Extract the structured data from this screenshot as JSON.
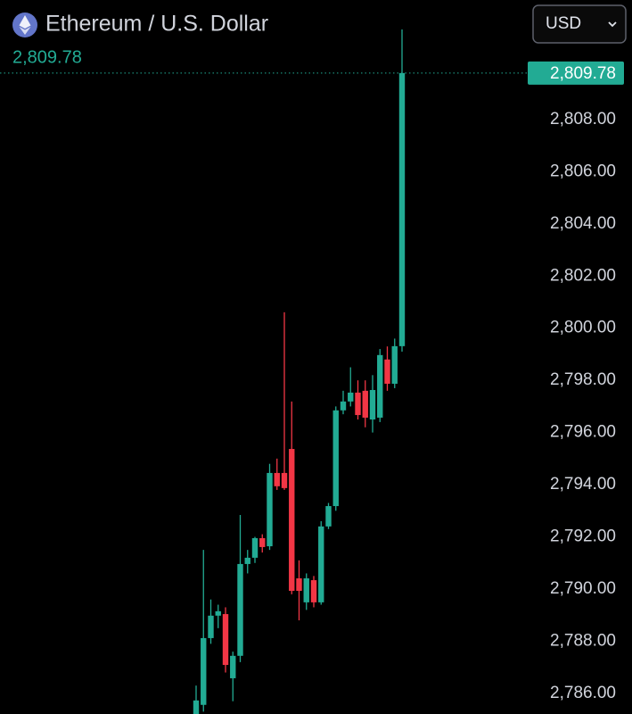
{
  "chart_data": {
    "type": "candlestick",
    "title": "Ethereum / U.S. Dollar",
    "currency": "USD",
    "price_label": {
      "value": 2809.78,
      "label": "2,809.78"
    },
    "up_color": "#22ab94",
    "down_color": "#f23645",
    "categories": [
      null,
      null,
      null,
      null,
      null,
      null,
      null,
      null,
      null,
      null,
      null,
      null,
      null,
      null,
      null,
      null,
      null,
      null,
      null,
      null,
      null,
      null,
      null,
      null,
      null,
      null,
      null,
      null,
      null
    ],
    "open": [
      2785.21,
      2785.56,
      2788.12,
      2788.98,
      2789.04,
      2786.58,
      2787.44,
      2790.96,
      2791.2,
      2791.95,
      2791.64,
      2794.45,
      2794.45,
      2795.37,
      2790.41,
      2789.49,
      2790.34,
      2789.49,
      2792.4,
      2793.18,
      2796.85,
      2797.19,
      2797.53,
      2797.6,
      2796.5,
      2796.57,
      2798.8,
      2797.87,
      2799.31
    ],
    "high": [
      2786.3,
      2791.5,
      2789.6,
      2789.4,
      2789.3,
      2787.6,
      2792.84,
      2791.5,
      2792.0,
      2792.1,
      2794.8,
      2795.0,
      2800.61,
      2797.19,
      2791.1,
      2790.6,
      2790.5,
      2792.6,
      2793.3,
      2797.0,
      2797.6,
      2798.5,
      2798.0,
      2798.0,
      2798.2,
      2799.2,
      2799.3,
      2799.6,
      2811.45
    ],
    "low": [
      2785.0,
      2785.3,
      2787.9,
      2788.5,
      2786.8,
      2785.7,
      2787.2,
      2790.6,
      2791.0,
      2791.4,
      2791.5,
      2793.8,
      2793.8,
      2789.8,
      2788.8,
      2789.2,
      2789.3,
      2789.4,
      2792.3,
      2793.0,
      2796.7,
      2797.0,
      2796.5,
      2796.2,
      2796.0,
      2796.4,
      2797.6,
      2797.7,
      2799.1
    ],
    "close": [
      2785.73,
      2788.12,
      2788.98,
      2789.15,
      2787.09,
      2787.44,
      2790.96,
      2791.2,
      2791.95,
      2791.61,
      2794.45,
      2793.94,
      2793.87,
      2789.93,
      2789.93,
      2790.41,
      2789.49,
      2792.4,
      2793.18,
      2796.85,
      2797.19,
      2797.53,
      2796.67,
      2796.57,
      2797.63,
      2798.97,
      2797.87,
      2799.31,
      2809.78
    ],
    "ylim": [
      2785.21,
      2812.58
    ],
    "yticks": [
      {
        "value": 2786,
        "label": "2,786.00"
      },
      {
        "value": 2788,
        "label": "2,788.00"
      },
      {
        "value": 2790,
        "label": "2,790.00"
      },
      {
        "value": 2792,
        "label": "2,792.00"
      },
      {
        "value": 2794,
        "label": "2,794.00"
      },
      {
        "value": 2796,
        "label": "2,796.00"
      },
      {
        "value": 2798,
        "label": "2,798.00"
      },
      {
        "value": 2800,
        "label": "2,800.00"
      },
      {
        "value": 2802,
        "label": "2,802.00"
      },
      {
        "value": 2804,
        "label": "2,804.00"
      },
      {
        "value": 2806,
        "label": "2,806.00"
      },
      {
        "value": 2808,
        "label": "2,808.00"
      }
    ]
  }
}
